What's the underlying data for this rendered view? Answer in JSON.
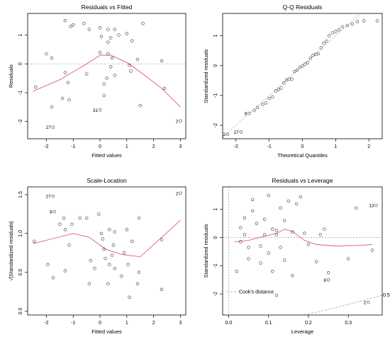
{
  "chart_data": [
    {
      "type": "scatter",
      "id": "resfit",
      "title": "Residuals vs Fitted",
      "xlabel": "Fitted values",
      "ylabel": "Residuals",
      "xlim": [
        -2.7,
        3.2
      ],
      "ylim": [
        -2.6,
        1.75
      ],
      "xticks": [
        -2,
        -1,
        0,
        1,
        2,
        3
      ],
      "yticks": [
        -2,
        -1,
        0,
        1
      ],
      "refline": {
        "y": 0
      },
      "points": [
        [
          -1.3,
          1.5
        ],
        [
          -1.0,
          1.35
        ],
        [
          -1.1,
          1.3
        ],
        [
          -0.6,
          1.4
        ],
        [
          -0.4,
          1.2
        ],
        [
          0.0,
          1.25
        ],
        [
          0.3,
          1.2
        ],
        [
          0.55,
          1.2
        ],
        [
          0.7,
          1.0
        ],
        [
          1.0,
          1.05
        ],
        [
          1.2,
          0.8
        ],
        [
          1.6,
          1.4
        ],
        [
          -2.0,
          0.35
        ],
        [
          -1.8,
          0.2
        ],
        [
          0.05,
          0.95
        ],
        [
          0.4,
          0.9
        ],
        [
          0.3,
          0.75
        ],
        [
          0.0,
          0.4
        ],
        [
          0.3,
          0.35
        ],
        [
          0.45,
          0.2
        ],
        [
          1.4,
          0.15
        ],
        [
          2.3,
          0.1
        ],
        [
          1.1,
          -0.05
        ],
        [
          -2.4,
          -0.8
        ],
        [
          -1.3,
          -0.3
        ],
        [
          -0.5,
          -0.35
        ],
        [
          0.4,
          -0.1
        ],
        [
          0.55,
          -0.4
        ],
        [
          1.15,
          -0.25
        ],
        [
          0.25,
          -0.5
        ],
        [
          0.15,
          -0.7
        ],
        [
          -1.4,
          -1.2
        ],
        [
          -1.15,
          -1.25
        ],
        [
          -1.2,
          -0.65
        ],
        [
          0.15,
          -1.1
        ],
        [
          1.5,
          -1.45
        ],
        [
          -1.8,
          -1.5
        ],
        [
          0.0,
          -1.6
        ],
        [
          -1.75,
          -2.2
        ],
        [
          2.4,
          -0.85
        ],
        [
          3.0,
          -1.98
        ]
      ],
      "labels": [
        {
          "text": "27",
          "x": -1.75,
          "y": -2.2
        },
        {
          "text": "31",
          "x": 0.0,
          "y": -1.6
        },
        {
          "text": "2",
          "x": 3.0,
          "y": -1.98
        }
      ],
      "smooth": [
        [
          -2.5,
          -0.95
        ],
        [
          -1.5,
          -0.55
        ],
        [
          -0.5,
          0.0
        ],
        [
          0.0,
          0.3
        ],
        [
          0.4,
          0.3
        ],
        [
          1.0,
          0.05
        ],
        [
          1.6,
          -0.35
        ],
        [
          2.3,
          -0.85
        ],
        [
          3.0,
          -1.5
        ]
      ]
    },
    {
      "type": "scatter",
      "id": "qq",
      "title": "Q-Q Residuals",
      "xlabel": "Theoretical Quantiles",
      "ylabel": "Standardized residuals",
      "xlim": [
        -2.4,
        2.4
      ],
      "ylim": [
        -2.45,
        1.75
      ],
      "xticks": [
        -2,
        -1,
        0,
        1,
        2
      ],
      "yticks": [
        -2,
        -1,
        0,
        1
      ],
      "diagonal": [
        [
          -2.4,
          -2.4
        ],
        [
          2.4,
          2.4
        ]
      ],
      "points": [
        [
          -2.25,
          -2.3
        ],
        [
          -1.85,
          -2.22
        ],
        [
          -1.6,
          -1.6
        ],
        [
          -1.45,
          -1.5
        ],
        [
          -1.35,
          -1.4
        ],
        [
          -1.2,
          -1.3
        ],
        [
          -1.1,
          -1.25
        ],
        [
          -1.0,
          -1.1
        ],
        [
          -0.9,
          -1.05
        ],
        [
          -0.8,
          -0.85
        ],
        [
          -0.72,
          -0.8
        ],
        [
          -0.64,
          -0.75
        ],
        [
          -0.56,
          -0.58
        ],
        [
          -0.48,
          -0.48
        ],
        [
          -0.4,
          -0.45
        ],
        [
          -0.32,
          -0.45
        ],
        [
          -0.24,
          -0.2
        ],
        [
          -0.16,
          -0.15
        ],
        [
          -0.08,
          -0.05
        ],
        [
          0.0,
          -0.02
        ],
        [
          0.08,
          0.05
        ],
        [
          0.16,
          0.1
        ],
        [
          0.24,
          0.25
        ],
        [
          0.32,
          0.35
        ],
        [
          0.4,
          0.38
        ],
        [
          0.48,
          0.4
        ],
        [
          0.56,
          0.6
        ],
        [
          0.64,
          0.75
        ],
        [
          0.72,
          0.82
        ],
        [
          0.8,
          1.0
        ],
        [
          0.9,
          1.1
        ],
        [
          1.0,
          1.15
        ],
        [
          1.1,
          1.2
        ],
        [
          1.2,
          1.3
        ],
        [
          1.35,
          1.35
        ],
        [
          1.5,
          1.4
        ],
        [
          1.65,
          1.48
        ],
        [
          1.85,
          1.5
        ],
        [
          2.25,
          1.5
        ]
      ],
      "labels": [
        {
          "text": "2",
          "x": -2.25,
          "y": -2.3
        },
        {
          "text": "27",
          "x": -1.85,
          "y": -2.22
        },
        {
          "text": "8",
          "x": -1.6,
          "y": -1.6
        }
      ]
    },
    {
      "type": "scatter",
      "id": "scaleloc",
      "title": "Scale-Location",
      "xlabel": "Fitted values",
      "ylabel": "√|Standardized residuals|",
      "xlim": [
        -2.7,
        3.2
      ],
      "ylim": [
        -0.05,
        1.6
      ],
      "xticks": [
        -2,
        -1,
        0,
        1,
        2,
        3
      ],
      "yticks": [
        0.0,
        0.5,
        1.0,
        1.5
      ],
      "yticklabels": [
        "0.0",
        "0.5",
        "1.0",
        "1.5"
      ],
      "points": [
        [
          -2.45,
          0.9
        ],
        [
          -1.95,
          0.6
        ],
        [
          -1.75,
          0.43
        ],
        [
          -1.75,
          1.48
        ],
        [
          -1.7,
          1.28
        ],
        [
          -1.5,
          1.12
        ],
        [
          -1.35,
          1.2
        ],
        [
          -1.3,
          1.05
        ],
        [
          -1.15,
          0.85
        ],
        [
          -1.05,
          1.12
        ],
        [
          -0.75,
          1.2
        ],
        [
          -0.5,
          1.2
        ],
        [
          -0.35,
          0.65
        ],
        [
          -0.2,
          0.55
        ],
        [
          -0.05,
          1.25
        ],
        [
          0.05,
          1.0
        ],
        [
          0.1,
          0.93
        ],
        [
          0.15,
          0.8
        ],
        [
          0.2,
          0.68
        ],
        [
          0.3,
          0.35
        ],
        [
          0.35,
          0.6
        ],
        [
          0.35,
          1.05
        ],
        [
          0.45,
          0.72
        ],
        [
          0.5,
          0.85
        ],
        [
          0.55,
          1.02
        ],
        [
          0.55,
          0.55
        ],
        [
          0.8,
          0.45
        ],
        [
          0.9,
          0.75
        ],
        [
          1.0,
          1.05
        ],
        [
          1.05,
          0.6
        ],
        [
          1.1,
          0.18
        ],
        [
          1.2,
          0.9
        ],
        [
          1.4,
          0.35
        ],
        [
          1.45,
          0.5
        ],
        [
          1.45,
          1.2
        ],
        [
          -1.3,
          0.52
        ],
        [
          -0.4,
          0.35
        ],
        [
          2.3,
          0.28
        ],
        [
          2.3,
          0.92
        ],
        [
          3.0,
          1.52
        ]
      ],
      "labels": [
        {
          "text": "27",
          "x": -1.75,
          "y": 1.48
        },
        {
          "text": "8",
          "x": -1.7,
          "y": 1.28
        },
        {
          "text": "2",
          "x": 3.0,
          "y": 1.52
        }
      ],
      "smooth": [
        [
          -2.5,
          0.87
        ],
        [
          -1.8,
          0.93
        ],
        [
          -1.0,
          1.0
        ],
        [
          -0.4,
          0.95
        ],
        [
          0.2,
          0.8
        ],
        [
          0.8,
          0.73
        ],
        [
          1.5,
          0.7
        ],
        [
          2.3,
          0.95
        ],
        [
          3.0,
          1.17
        ]
      ]
    },
    {
      "type": "scatter",
      "id": "resleverage",
      "title": "Residuals vs Leverage",
      "xlabel": "Leverage",
      "ylabel": "Standardized residuals",
      "xlim": [
        -0.015,
        0.385
      ],
      "ylim": [
        -2.75,
        1.8
      ],
      "xticks": [
        0.0,
        0.1,
        0.2,
        0.3
      ],
      "xticklabels": [
        "0.0",
        "0.1",
        "0.2",
        "0.3"
      ],
      "yticks": [
        -2,
        -1,
        0,
        1
      ],
      "refline": {
        "y": 0,
        "x": 0
      },
      "points": [
        [
          0.02,
          -1.2
        ],
        [
          0.03,
          -0.15
        ],
        [
          0.03,
          0.35
        ],
        [
          0.04,
          0.1
        ],
        [
          0.04,
          0.7
        ],
        [
          0.05,
          -0.35
        ],
        [
          0.05,
          -0.75
        ],
        [
          0.06,
          0.95
        ],
        [
          0.06,
          1.35
        ],
        [
          0.07,
          0.5
        ],
        [
          0.08,
          -0.3
        ],
        [
          0.08,
          -0.9
        ],
        [
          0.09,
          0.1
        ],
        [
          0.09,
          0.65
        ],
        [
          0.1,
          -0.55
        ],
        [
          0.1,
          1.5
        ],
        [
          0.11,
          0.3
        ],
        [
          0.11,
          -1.2
        ],
        [
          0.12,
          0.1
        ],
        [
          0.12,
          0.25
        ],
        [
          0.12,
          -2.05
        ],
        [
          0.13,
          1.05
        ],
        [
          0.13,
          -0.35
        ],
        [
          0.14,
          0.6
        ],
        [
          0.14,
          -0.8
        ],
        [
          0.15,
          1.3
        ],
        [
          0.16,
          0.2
        ],
        [
          0.16,
          -1.35
        ],
        [
          0.17,
          1.2
        ],
        [
          0.18,
          1.45
        ],
        [
          0.19,
          0.15
        ],
        [
          0.2,
          -0.25
        ],
        [
          0.22,
          -0.85
        ],
        [
          0.23,
          0.1
        ],
        [
          0.24,
          0.3
        ],
        [
          0.25,
          -1.25
        ],
        [
          0.25,
          -1.5
        ],
        [
          0.3,
          -0.75
        ],
        [
          0.32,
          1.05
        ],
        [
          0.35,
          -2.3
        ],
        [
          0.36,
          -0.45
        ],
        [
          0.37,
          1.15
        ]
      ],
      "labels": [
        {
          "text": "13",
          "x": 0.37,
          "y": 1.15
        },
        {
          "text": "8",
          "x": 0.25,
          "y": -1.5
        },
        {
          "text": "2",
          "x": 0.35,
          "y": -2.3
        }
      ],
      "smooth": [
        [
          0.015,
          -0.15
        ],
        [
          0.05,
          -0.1
        ],
        [
          0.09,
          0.05
        ],
        [
          0.12,
          0.15
        ],
        [
          0.14,
          0.3
        ],
        [
          0.16,
          0.22
        ],
        [
          0.19,
          -0.1
        ],
        [
          0.22,
          -0.25
        ],
        [
          0.27,
          -0.3
        ],
        [
          0.32,
          -0.28
        ],
        [
          0.36,
          -0.25
        ]
      ],
      "cooks": {
        "legend": "Cook's distance",
        "contour_label": "0.5",
        "line": [
          [
            0.19,
            -2.75
          ],
          [
            0.28,
            -2.45
          ],
          [
            0.385,
            -2.05
          ]
        ]
      }
    }
  ]
}
